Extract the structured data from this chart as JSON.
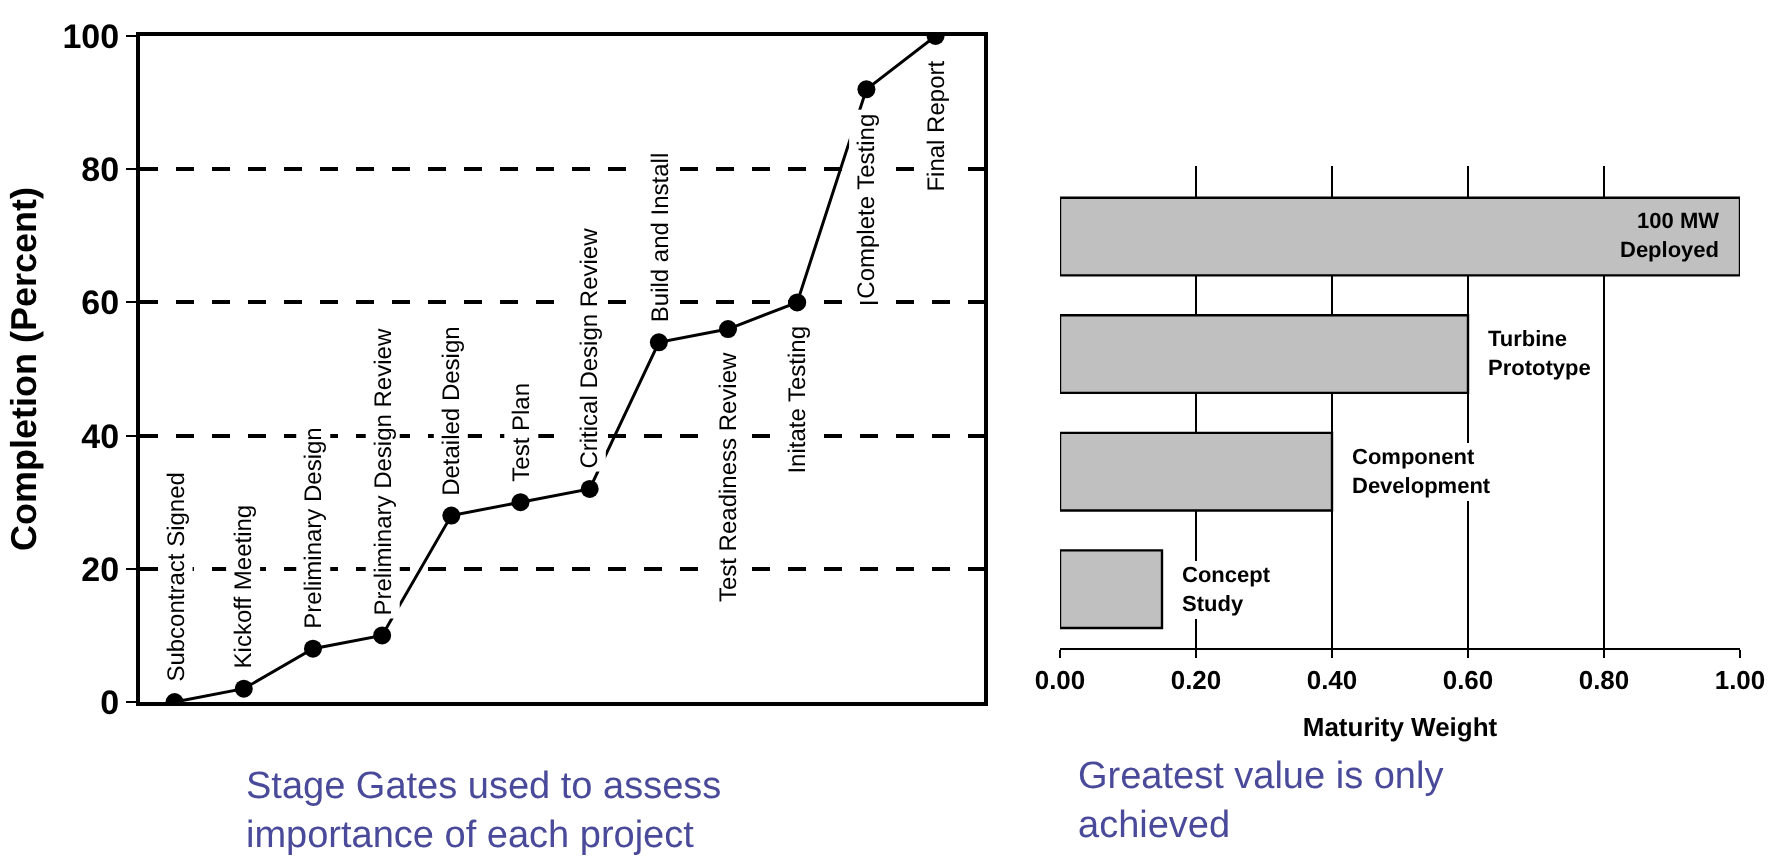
{
  "chart_data": [
    {
      "type": "line",
      "ylabel": "Completion (Percent)",
      "categories": [
        "Subcontract Signed",
        "Kickoff Meeting",
        "Preliminary Design",
        "Preliminary Design Review",
        "Detailed Design",
        "Test Plan",
        "Critical Design Review",
        "Build and Install",
        "Test Readiness Review",
        "Initate Testing",
        "Complete Testing",
        "Final Report"
      ],
      "values": [
        0,
        2,
        8,
        10,
        28,
        30,
        32,
        54,
        56,
        60,
        92,
        100
      ],
      "color": "#000000",
      "marker": "circle",
      "ylim": [
        0,
        100
      ],
      "yticks": [
        0,
        20,
        40,
        60,
        80,
        100
      ],
      "grid": "y",
      "tick_labels": "y",
      "annotations": [
        "Stage Gates used to assess importance of each project"
      ]
    },
    {
      "type": "bar",
      "orientation": "horizontal",
      "xlabel": "Maturity Weight",
      "categories": [
        "100 MW Deployed",
        "Turbine Prototype",
        "Component Development",
        "Concept Study"
      ],
      "values": [
        1.0,
        0.6,
        0.4,
        0.15
      ],
      "color": "#c0c0c0",
      "xlim": [
        0,
        1
      ],
      "xticks": [
        {
          "value": 0,
          "label": "0.00"
        },
        {
          "value": 0.2,
          "label": "0.20"
        },
        {
          "value": 0.4,
          "label": "0.40"
        },
        {
          "value": 0.6,
          "label": "0.60"
        },
        {
          "value": 0.8,
          "label": "0.80"
        },
        {
          "value": 1,
          "label": "1.00"
        }
      ],
      "grid": "x",
      "tick_labels": "x",
      "annotations": [
        "Greatest value is only achieved"
      ]
    }
  ]
}
